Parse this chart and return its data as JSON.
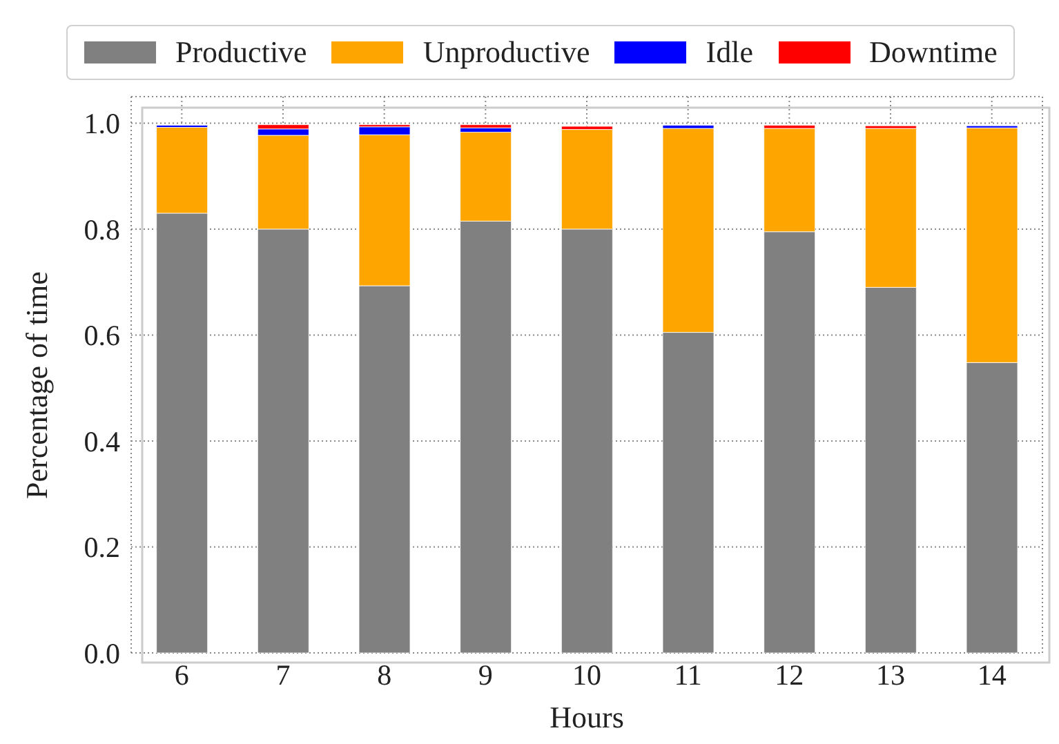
{
  "chart_data": {
    "type": "bar",
    "stacked": true,
    "xlabel": "Hours",
    "ylabel": "Percentage of time",
    "categories": [
      "6",
      "7",
      "8",
      "9",
      "10",
      "11",
      "12",
      "13",
      "14"
    ],
    "series": [
      {
        "name": "Productive",
        "color": "#808080",
        "values": [
          0.83,
          0.8,
          0.693,
          0.815,
          0.8,
          0.605,
          0.795,
          0.69,
          0.548
        ]
      },
      {
        "name": "Unproductive",
        "color": "#ffa500",
        "values": [
          0.162,
          0.177,
          0.285,
          0.168,
          0.188,
          0.385,
          0.195,
          0.3,
          0.443
        ]
      },
      {
        "name": "Idle",
        "color": "#0000ff",
        "values": [
          0.004,
          0.012,
          0.015,
          0.008,
          0,
          0.006,
          0,
          0,
          0.004
        ]
      },
      {
        "name": "Downtime",
        "color": "#ff0000",
        "values": [
          0,
          0.008,
          0.004,
          0.006,
          0.006,
          0,
          0.006,
          0.005,
          0
        ]
      }
    ],
    "ylim": [
      0,
      1.05
    ],
    "yticks": [
      {
        "value": 0,
        "label": "0.0"
      },
      {
        "value": 0.2,
        "label": "0.2"
      },
      {
        "value": 0.4,
        "label": "0.4"
      },
      {
        "value": 0.6,
        "label": "0.6"
      },
      {
        "value": 0.8,
        "label": "0.8"
      },
      {
        "value": 1,
        "label": "1.0"
      }
    ],
    "grid": true,
    "legend": "top"
  }
}
